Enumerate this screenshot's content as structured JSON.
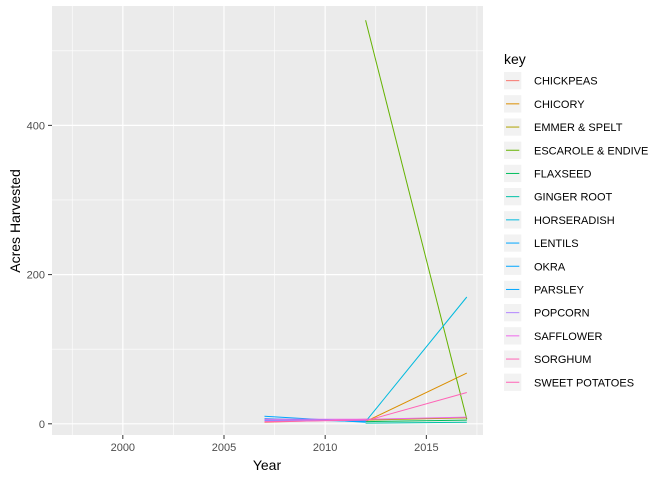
{
  "chart_data": {
    "type": "line",
    "title": "",
    "xlabel": "Year",
    "ylabel": "Acres Harvested",
    "xlim": [
      1996.5,
      2017.8
    ],
    "ylim": [
      -15,
      560
    ],
    "x_ticks": [
      2000,
      2005,
      2010,
      2015
    ],
    "y_ticks": [
      0,
      200,
      400
    ],
    "grid": true,
    "legend_title": "key",
    "legend_position": "right",
    "series": [
      {
        "name": "CHICKPEAS",
        "color": "#F8766D",
        "x": [
          2007,
          2012,
          2017
        ],
        "y": [
          2,
          6,
          8
        ]
      },
      {
        "name": "CHICORY",
        "color": "#DB8E00",
        "x": [
          2012,
          2017
        ],
        "y": [
          3,
          68
        ]
      },
      {
        "name": "EMMER & SPELT",
        "color": "#AEA200",
        "x": [
          2012,
          2017
        ],
        "y": [
          5,
          8
        ]
      },
      {
        "name": "ESCAROLE & ENDIVE",
        "color": "#64B200",
        "x": [
          2012,
          2017
        ],
        "y": [
          541,
          6
        ]
      },
      {
        "name": "FLAXSEED",
        "color": "#00BD5C",
        "x": [
          2012,
          2017
        ],
        "y": [
          3,
          5
        ]
      },
      {
        "name": "GINGER ROOT",
        "color": "#00C1A7",
        "x": [
          2012,
          2017
        ],
        "y": [
          1,
          2
        ]
      },
      {
        "name": "HORSERADISH",
        "color": "#00BADE",
        "x": [
          2012,
          2017
        ],
        "y": [
          3,
          170
        ]
      },
      {
        "name": "LENTILS",
        "color": "#00A6FF",
        "x": [
          2007,
          2012
        ],
        "y": [
          10,
          2
        ]
      },
      {
        "name": "OKRA",
        "color": "#00A6FF",
        "x": [
          2007,
          2012
        ],
        "y": [
          7,
          3
        ]
      },
      {
        "name": "PARSLEY",
        "color": "#00A6FF",
        "x": [
          2007,
          2012
        ],
        "y": [
          5,
          4
        ]
      },
      {
        "name": "POPCORN",
        "color": "#B385FF",
        "x": [
          2007,
          2012
        ],
        "y": [
          4,
          5
        ]
      },
      {
        "name": "SAFFLOWER",
        "color": "#EF67EB",
        "x": [
          2007,
          2012,
          2017
        ],
        "y": [
          6,
          6,
          9
        ]
      },
      {
        "name": "SORGHUM",
        "color": "#FF63B6",
        "x": [
          2012,
          2017
        ],
        "y": [
          4,
          42
        ]
      },
      {
        "name": "SWEET POTATOES",
        "color": "#FF63B6",
        "x": [
          2007,
          2012
        ],
        "y": [
          3,
          5
        ]
      }
    ]
  }
}
